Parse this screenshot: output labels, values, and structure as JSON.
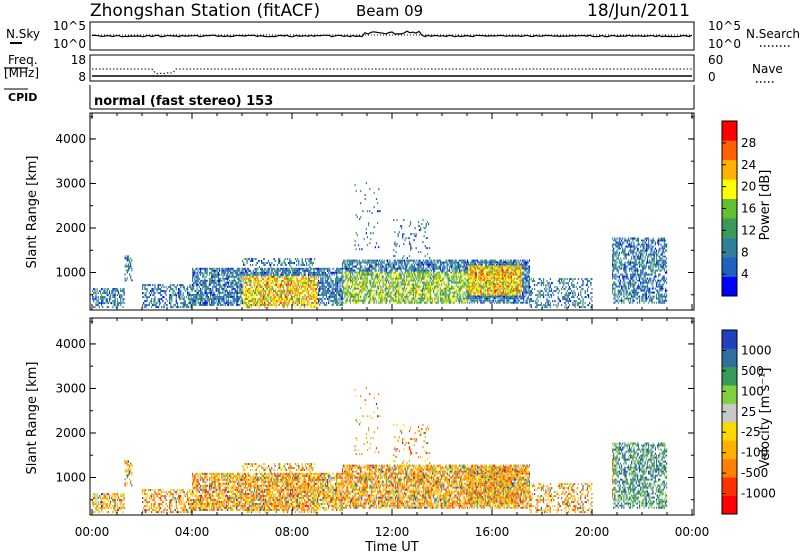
{
  "header": {
    "station": "Zhongshan Station (fitACF)",
    "beam": "Beam 09",
    "date": "18/Jun/2011"
  },
  "ops_panels": {
    "nsky_label": "N.Sky",
    "nsky_ticks": [
      "10^5",
      "10^0"
    ],
    "nsearch_label": "N.Search",
    "nsearch_ticks": [
      "10^5",
      "10^0"
    ],
    "freq_label_line1": "Freq.",
    "freq_label_line2": "[MHz]",
    "freq_ticks": [
      "18",
      "8"
    ],
    "nave_label": "Nave",
    "nave_ticks": [
      "60",
      "0"
    ],
    "cpid_label": "CPID",
    "cpid_text": "normal (fast stereo) 153"
  },
  "colors": {
    "power_scale": [
      "#0000ff",
      "#2060c0",
      "#30809a",
      "#3a9a5a",
      "#60c030",
      "#ffff00",
      "#ffb000",
      "#ff6000",
      "#ff0000"
    ],
    "velocity_scale": [
      "#ff0000",
      "#ff3000",
      "#ff8000",
      "#ffb000",
      "#ffd800",
      "#c8c8c8",
      "#80d040",
      "#3a9a5a",
      "#3070a0",
      "#2040c0"
    ]
  },
  "chart_data": [
    {
      "type": "heatmap",
      "name": "power",
      "xlabel": "",
      "ylabel": "Slant Range [km]",
      "xlim": [
        0,
        24
      ],
      "ylim": [
        180,
        4560
      ],
      "y_ticks": [
        "1000",
        "2000",
        "3000",
        "4000"
      ],
      "colorbar_label": "Power [dB]",
      "colorbar_ticks": [
        "4",
        "8",
        "12",
        "16",
        "20",
        "24",
        "28"
      ],
      "colorbar_range": [
        0,
        32
      ]
    },
    {
      "type": "heatmap",
      "name": "velocity",
      "xlabel": "Time UT",
      "ylabel": "Slant Range [km]",
      "xlim": [
        0,
        24
      ],
      "ylim": [
        180,
        4560
      ],
      "x_ticks": [
        "00:00",
        "04:00",
        "08:00",
        "12:00",
        "16:00",
        "20:00",
        "00:00"
      ],
      "y_ticks": [
        "1000",
        "2000",
        "3000",
        "4000"
      ],
      "colorbar_label": "Velocity [m s⁻¹]",
      "colorbar_ticks": [
        "1000",
        "500",
        "100",
        "25",
        "-25",
        "-100",
        "-500",
        "-1000"
      ]
    }
  ]
}
